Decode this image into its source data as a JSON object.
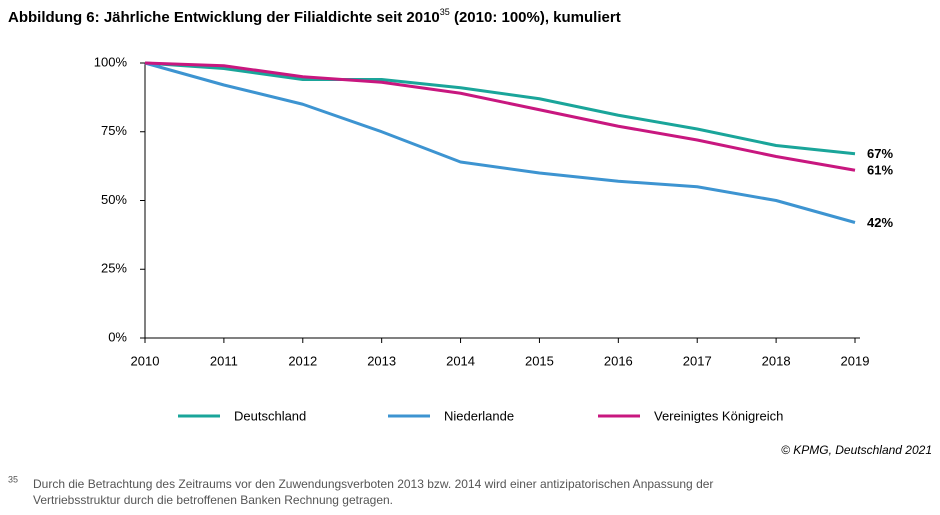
{
  "chart_data": {
    "type": "line",
    "title": "Abbildung 6: Jährliche Entwicklung der Filialdichte seit 2010",
    "title_superscript": "35",
    "title_suffix": " (2010: 100%), kumuliert",
    "x": [
      2010,
      2011,
      2012,
      2013,
      2014,
      2015,
      2016,
      2017,
      2018,
      2019
    ],
    "xlim": [
      2010,
      2019
    ],
    "xticks": [
      2010,
      2011,
      2012,
      2013,
      2014,
      2015,
      2016,
      2017,
      2018,
      2019
    ],
    "ylim": [
      0,
      100
    ],
    "yticks": [
      {
        "value": 0,
        "label": "0%"
      },
      {
        "value": 25,
        "label": "25%"
      },
      {
        "value": 50,
        "label": "50%"
      },
      {
        "value": 75,
        "label": "75%"
      },
      {
        "value": 100,
        "label": "100%"
      }
    ],
    "grid": false,
    "legend": "bottom",
    "series": [
      {
        "name": "Deutschland",
        "color": "#1aa59a",
        "values": [
          100,
          98,
          94,
          94,
          91,
          87,
          81,
          76,
          70,
          67
        ],
        "value_labels": [
          null,
          null,
          null,
          null,
          null,
          null,
          null,
          null,
          null,
          "67%"
        ]
      },
      {
        "name": "Niederlande",
        "color": "#3d94d1",
        "values": [
          100,
          92,
          85,
          75,
          64,
          60,
          57,
          55,
          50,
          42
        ],
        "value_labels": [
          null,
          null,
          null,
          null,
          null,
          null,
          null,
          null,
          null,
          "42%"
        ]
      },
      {
        "name": "Vereinigtes Königreich",
        "color": "#c8177f",
        "values": [
          100,
          99,
          95,
          93,
          89,
          83,
          77,
          72,
          66,
          61
        ],
        "value_labels": [
          null,
          null,
          null,
          null,
          null,
          null,
          null,
          null,
          null,
          "61%"
        ]
      }
    ],
    "source": "© KPMG, Deutschland 2021",
    "footnote_marker": "35",
    "footnote_lines": [
      "Durch die Betrachtung des Zeitraums vor den Zuwendungsverboten 2013 bzw. 2014 wird einer antizipatorischen Anpassung der",
      "Vertriebsstruktur durch die betroffenen Banken Rechnung getragen."
    ]
  }
}
